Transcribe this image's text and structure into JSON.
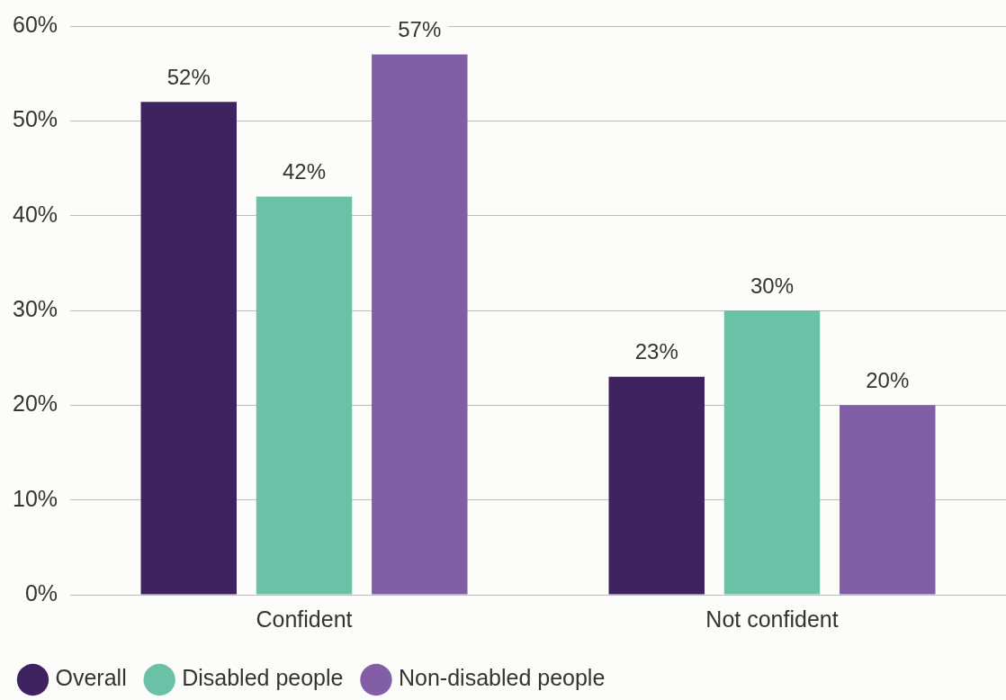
{
  "chart_data": {
    "type": "bar",
    "categories": [
      "Confident",
      "Not confident"
    ],
    "series": [
      {
        "name": "Overall",
        "color": "#3f2260",
        "values": [
          52,
          23
        ],
        "value_labels": [
          "52%",
          "23%"
        ]
      },
      {
        "name": "Disabled people",
        "color": "#6bc1a5",
        "values": [
          42,
          30
        ],
        "value_labels": [
          "42%",
          "30%"
        ]
      },
      {
        "name": "Non-disabled people",
        "color": "#825ea6",
        "values": [
          57,
          20
        ],
        "value_labels": [
          "57%",
          "20%"
        ]
      }
    ],
    "ylim": [
      0,
      60
    ],
    "yticks": [
      {
        "value": 0,
        "label": "0%"
      },
      {
        "value": 10,
        "label": "10%"
      },
      {
        "value": 20,
        "label": "20%"
      },
      {
        "value": 30,
        "label": "30%"
      },
      {
        "value": 40,
        "label": "40%"
      },
      {
        "value": 50,
        "label": "50%"
      },
      {
        "value": 60,
        "label": "60%"
      }
    ],
    "grid": "y",
    "legend": "bottom left"
  }
}
